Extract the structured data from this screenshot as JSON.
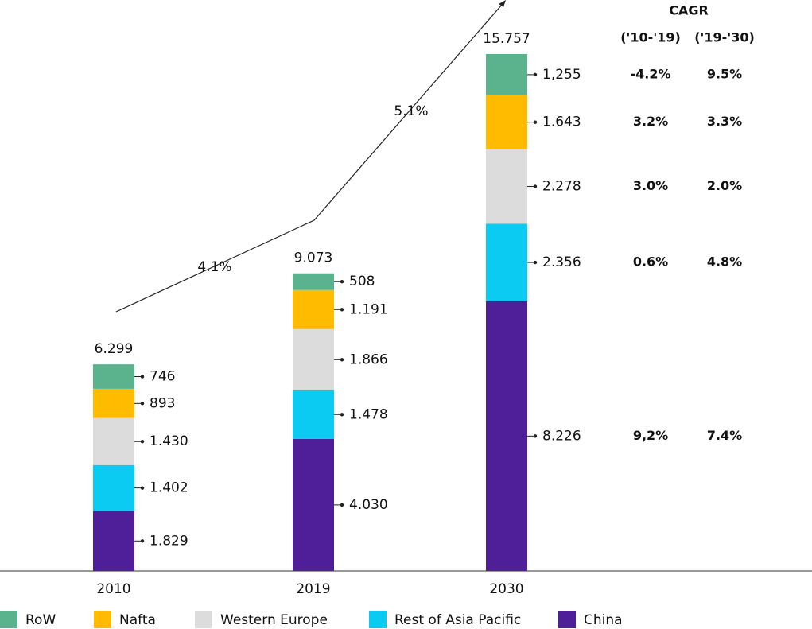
{
  "chart_data": {
    "type": "stacked_bar",
    "categories": [
      "2010",
      "2019",
      "2030"
    ],
    "series": [
      {
        "name": "China",
        "color": "#4f1f9a",
        "values": [
          1829,
          4030,
          8226
        ],
        "value_labels": [
          "1.829",
          "4.030",
          "8.226"
        ]
      },
      {
        "name": "Rest of Asia Pacific",
        "color": "#0bcbf2",
        "values": [
          1402,
          1478,
          2356
        ],
        "value_labels": [
          "1.402",
          "1.478",
          "2.356"
        ]
      },
      {
        "name": "Western Europe",
        "color": "#dcdcdc",
        "values": [
          1430,
          1866,
          2278
        ],
        "value_labels": [
          "1.430",
          "1.866",
          "2.278"
        ]
      },
      {
        "name": "Nafta",
        "color": "#ffbb00",
        "values": [
          893,
          1191,
          1643
        ],
        "value_labels": [
          "893",
          "1.191",
          "1.643"
        ]
      },
      {
        "name": "RoW",
        "color": "#5bb38d",
        "values": [
          746,
          508,
          1255
        ],
        "value_labels": [
          "746",
          "508",
          "1,255"
        ]
      }
    ],
    "totals": {
      "values": [
        6299,
        9073,
        15757
      ],
      "value_labels": [
        "6.299",
        "9.073",
        "15.757"
      ]
    },
    "annotations": [
      "4.1%",
      "5.1%"
    ],
    "cagr": {
      "title": "CAGR",
      "columns": [
        "('10-'19)",
        "('19-'30)"
      ],
      "rows": [
        [
          "9,2%",
          "7.4%"
        ],
        [
          "0.6%",
          "4.8%"
        ],
        [
          "3.0%",
          "2.0%"
        ],
        [
          "3.2%",
          "3.3%"
        ],
        [
          "-4.2%",
          "9.5%"
        ]
      ]
    }
  }
}
